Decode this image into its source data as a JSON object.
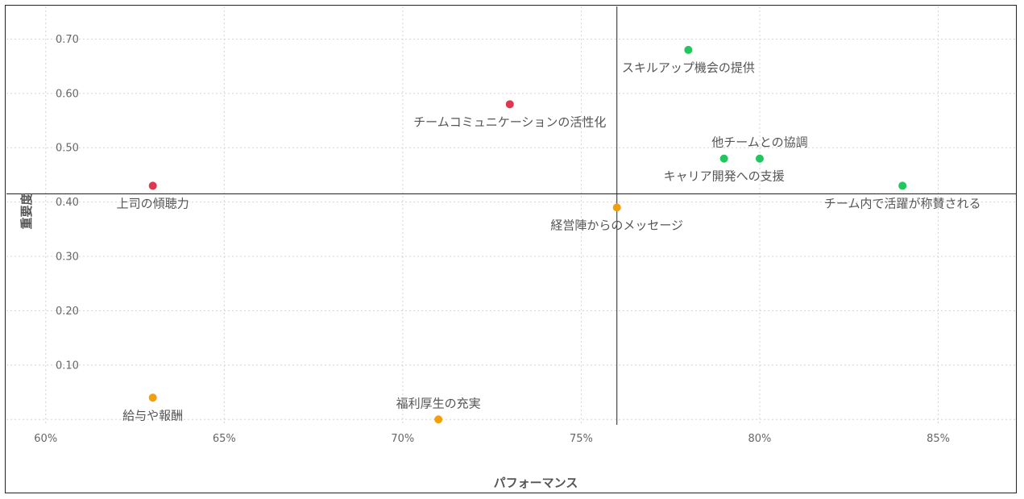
{
  "chart_data": {
    "type": "scatter",
    "xlabel": "パフォーマンス",
    "ylabel": "重要度",
    "xlim": [
      58.9,
      87.2
    ],
    "ylim": [
      -0.01,
      0.76
    ],
    "grid": true,
    "x_ticks": [
      {
        "value": 60,
        "label": "60%"
      },
      {
        "value": 65,
        "label": "65%"
      },
      {
        "value": 70,
        "label": "70%"
      },
      {
        "value": 75,
        "label": "75%"
      },
      {
        "value": 80,
        "label": "80%"
      },
      {
        "value": 85,
        "label": "85%"
      }
    ],
    "y_ticks": [
      {
        "value": 0.1,
        "label": "0.10"
      },
      {
        "value": 0.2,
        "label": "0.20"
      },
      {
        "value": 0.3,
        "label": "0.30"
      },
      {
        "value": 0.4,
        "label": "0.40"
      },
      {
        "value": 0.5,
        "label": "0.50"
      },
      {
        "value": 0.6,
        "label": "0.60"
      },
      {
        "value": 0.7,
        "label": "0.70"
      }
    ],
    "reference_lines": {
      "x": 76,
      "y": 0.415
    },
    "colors": {
      "green": "#22c55e",
      "red": "#e0364f",
      "orange": "#f59e0b"
    },
    "points": [
      {
        "label": "スキルアップ機会の提供",
        "x": 78,
        "y": 0.68,
        "color": "green",
        "label_pos": "below"
      },
      {
        "label": "チームコミュニケーションの活性化",
        "x": 73,
        "y": 0.58,
        "color": "red",
        "label_pos": "below"
      },
      {
        "label": "他チームとの協調",
        "x": 80,
        "y": 0.48,
        "color": "green",
        "label_pos": "above"
      },
      {
        "label": "キャリア開発への支援",
        "x": 79,
        "y": 0.48,
        "color": "green",
        "label_pos": "below"
      },
      {
        "label": "上司の傾聴力",
        "x": 63,
        "y": 0.43,
        "color": "red",
        "label_pos": "below"
      },
      {
        "label": "チーム内で活躍が称賛される",
        "x": 84,
        "y": 0.43,
        "color": "green",
        "label_pos": "below"
      },
      {
        "label": "経営陣からのメッセージ",
        "x": 76,
        "y": 0.39,
        "color": "orange",
        "label_pos": "below"
      },
      {
        "label": "福利厚生の充実",
        "x": 71,
        "y": 0.0,
        "color": "orange",
        "label_pos": "above"
      },
      {
        "label": "給与や報酬",
        "x": 63,
        "y": 0.04,
        "color": "orange",
        "label_pos": "below"
      }
    ]
  }
}
